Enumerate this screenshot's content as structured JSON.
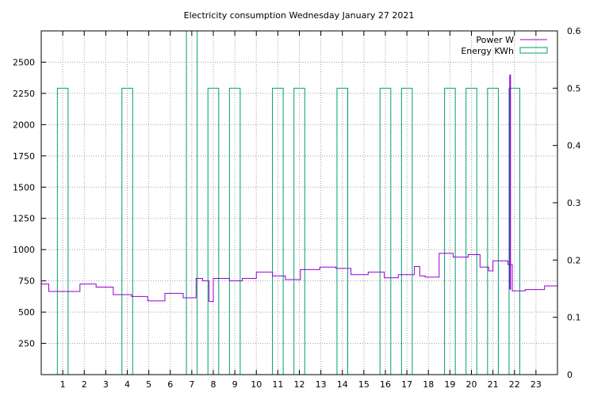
{
  "chart_data": {
    "type": "line",
    "title": "Electricity consumption Wednesday January 27 2021",
    "grid": true,
    "legend_placement": "top-right",
    "x_axis": {
      "range": [
        0,
        24
      ],
      "ticks": [
        1,
        2,
        3,
        4,
        5,
        6,
        7,
        8,
        9,
        10,
        11,
        12,
        13,
        14,
        15,
        16,
        17,
        18,
        19,
        20,
        21,
        22,
        23
      ],
      "tick_labels": [
        "1",
        "2",
        "3",
        "4",
        "5",
        "6",
        "7",
        "8",
        "9",
        "10",
        "11",
        "12",
        "13",
        "14",
        "15",
        "16",
        "17",
        "18",
        "19",
        "20",
        "21",
        "22",
        "23"
      ]
    },
    "y_axis_left": {
      "range": [
        0,
        2750
      ],
      "ticks": [
        250,
        500,
        750,
        1000,
        1250,
        1500,
        1750,
        2000,
        2250,
        2500
      ],
      "tick_labels": [
        "250",
        "500",
        "750",
        "1000",
        "1250",
        "1500",
        "1750",
        "2000",
        "2250",
        "2500"
      ]
    },
    "y_axis_right": {
      "range": [
        0,
        0.6
      ],
      "ticks": [
        0,
        0.1,
        0.2,
        0.3,
        0.4,
        0.5,
        0.6
      ],
      "tick_labels": [
        "0",
        "0.1",
        "0.2",
        "0.3",
        "0.4",
        "0.5",
        "0.6"
      ]
    },
    "series": [
      {
        "name": "Power W",
        "axis": "left",
        "color": "#9400d3",
        "style": "steps",
        "x": [
          0,
          0.35,
          1,
          1.8,
          2.55,
          3.35,
          4.2,
          4.95,
          5.75,
          6.6,
          7.2,
          7.5,
          7.8,
          8,
          8.75,
          9.35,
          10,
          10.75,
          11.35,
          12.05,
          12.95,
          13.7,
          14.4,
          15.2,
          15.95,
          16.6,
          17.35,
          17.6,
          17.85,
          18.5,
          19.15,
          19.85,
          20.4,
          20.8,
          21,
          21.7,
          21.9,
          22.5,
          23.4,
          24
        ],
        "y": [
          725,
          665,
          665,
          725,
          700,
          640,
          625,
          590,
          650,
          615,
          770,
          750,
          585,
          770,
          750,
          770,
          820,
          790,
          760,
          840,
          860,
          850,
          800,
          820,
          775,
          800,
          865,
          790,
          780,
          970,
          940,
          960,
          860,
          830,
          910,
          880,
          670,
          680,
          710,
          670
        ],
        "spike": {
          "x": 21.8,
          "y": 2400
        }
      },
      {
        "name": "Energy KWh",
        "axis": "right",
        "color": "#009e73",
        "style": "impulse-boxes",
        "bars": [
          {
            "x0": 0.75,
            "x1": 1.25,
            "value": 0.5
          },
          {
            "x0": 3.75,
            "x1": 4.25,
            "value": 0.5
          },
          {
            "x0": 6.75,
            "x1": 7.25,
            "value": 0.6
          },
          {
            "x0": 7.75,
            "x1": 8.25,
            "value": 0.5
          },
          {
            "x0": 8.75,
            "x1": 9.25,
            "value": 0.5
          },
          {
            "x0": 10.75,
            "x1": 11.25,
            "value": 0.5
          },
          {
            "x0": 11.75,
            "x1": 12.25,
            "value": 0.5
          },
          {
            "x0": 13.75,
            "x1": 14.25,
            "value": 0.5
          },
          {
            "x0": 15.75,
            "x1": 16.25,
            "value": 0.5
          },
          {
            "x0": 16.75,
            "x1": 17.25,
            "value": 0.5
          },
          {
            "x0": 18.75,
            "x1": 19.25,
            "value": 0.5
          },
          {
            "x0": 19.75,
            "x1": 20.25,
            "value": 0.5
          },
          {
            "x0": 20.75,
            "x1": 21.25,
            "value": 0.5
          },
          {
            "x0": 21.75,
            "x1": 22.25,
            "value": 0.5
          }
        ]
      }
    ]
  }
}
